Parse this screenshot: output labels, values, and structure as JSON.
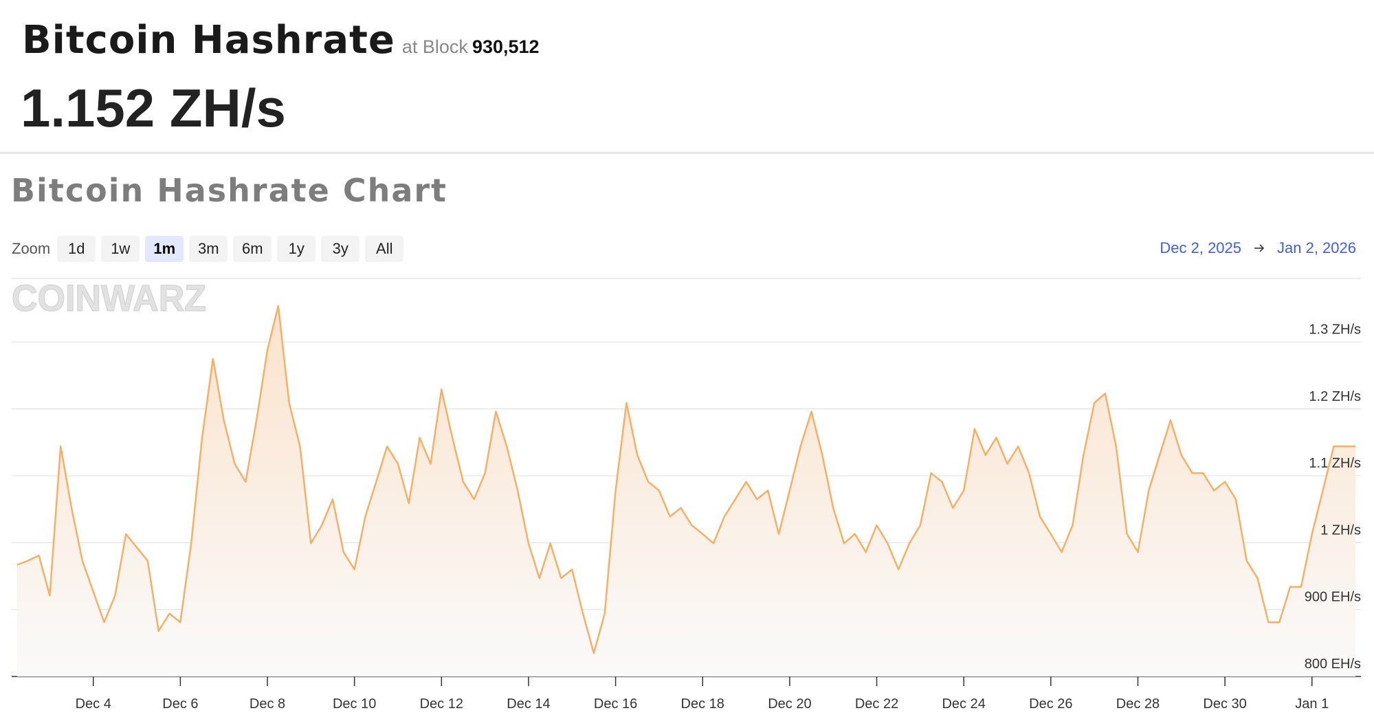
{
  "header": {
    "title": "Bitcoin Hashrate",
    "block_label": "at Block",
    "block_number": "930,512",
    "hashrate": "1.152 ZH/s"
  },
  "zoom": {
    "label": "Zoom",
    "options": [
      "1d",
      "1w",
      "1m",
      "3m",
      "6m",
      "1y",
      "3y",
      "All"
    ],
    "active": "1m"
  },
  "range": {
    "start": "Dec 2, 2025",
    "end": "Jan 2, 2026"
  },
  "watermark": "COINWARZ",
  "chart_data": {
    "type": "area",
    "title": "Bitcoin Hashrate Chart",
    "x": [
      "2025-12-02T06:00",
      "2025-12-02T12:00",
      "2025-12-02T18:00",
      "2025-12-03T00:00",
      "2025-12-03T06:00",
      "2025-12-03T12:00",
      "2025-12-03T18:00",
      "2025-12-04T00:00",
      "2025-12-04T06:00",
      "2025-12-04T12:00",
      "2025-12-04T18:00",
      "2025-12-05T00:00",
      "2025-12-05T06:00",
      "2025-12-05T12:00",
      "2025-12-05T18:00",
      "2025-12-06T00:00",
      "2025-12-06T06:00",
      "2025-12-06T12:00",
      "2025-12-06T18:00",
      "2025-12-07T00:00",
      "2025-12-07T06:00",
      "2025-12-07T12:00",
      "2025-12-07T18:00",
      "2025-12-08T00:00",
      "2025-12-08T06:00",
      "2025-12-08T12:00",
      "2025-12-08T18:00",
      "2025-12-09T00:00",
      "2025-12-09T06:00",
      "2025-12-09T12:00",
      "2025-12-09T18:00",
      "2025-12-10T00:00",
      "2025-12-10T06:00",
      "2025-12-10T12:00",
      "2025-12-10T18:00",
      "2025-12-11T00:00",
      "2025-12-11T06:00",
      "2025-12-11T12:00",
      "2025-12-11T18:00",
      "2025-12-12T00:00",
      "2025-12-12T06:00",
      "2025-12-12T12:00",
      "2025-12-12T18:00",
      "2025-12-13T00:00",
      "2025-12-13T06:00",
      "2025-12-13T12:00",
      "2025-12-13T18:00",
      "2025-12-14T00:00",
      "2025-12-14T06:00",
      "2025-12-14T12:00",
      "2025-12-14T18:00",
      "2025-12-15T00:00",
      "2025-12-15T06:00",
      "2025-12-15T12:00",
      "2025-12-15T18:00",
      "2025-12-16T00:00",
      "2025-12-16T06:00",
      "2025-12-16T12:00",
      "2025-12-16T18:00",
      "2025-12-17T00:00",
      "2025-12-17T06:00",
      "2025-12-17T12:00",
      "2025-12-17T18:00",
      "2025-12-18T00:00",
      "2025-12-18T06:00",
      "2025-12-18T12:00",
      "2025-12-18T18:00",
      "2025-12-19T00:00",
      "2025-12-19T06:00",
      "2025-12-19T12:00",
      "2025-12-19T18:00",
      "2025-12-20T00:00",
      "2025-12-20T06:00",
      "2025-12-20T12:00",
      "2025-12-20T18:00",
      "2025-12-21T00:00",
      "2025-12-21T06:00",
      "2025-12-21T12:00",
      "2025-12-21T18:00",
      "2025-12-22T00:00",
      "2025-12-22T06:00",
      "2025-12-22T12:00",
      "2025-12-22T18:00",
      "2025-12-23T00:00",
      "2025-12-23T06:00",
      "2025-12-23T12:00",
      "2025-12-23T18:00",
      "2025-12-24T00:00",
      "2025-12-24T06:00",
      "2025-12-24T12:00",
      "2025-12-24T18:00",
      "2025-12-25T00:00",
      "2025-12-25T06:00",
      "2025-12-25T12:00",
      "2025-12-25T18:00",
      "2025-12-26T00:00",
      "2025-12-26T06:00",
      "2025-12-26T12:00",
      "2025-12-26T18:00",
      "2025-12-27T00:00",
      "2025-12-27T06:00",
      "2025-12-27T12:00",
      "2025-12-27T18:00",
      "2025-12-28T00:00",
      "2025-12-28T06:00",
      "2025-12-28T12:00",
      "2025-12-28T18:00",
      "2025-12-29T00:00",
      "2025-12-29T06:00",
      "2025-12-29T12:00",
      "2025-12-29T18:00",
      "2025-12-30T00:00",
      "2025-12-30T06:00",
      "2025-12-30T12:00",
      "2025-12-30T18:00",
      "2025-12-31T00:00",
      "2025-12-31T06:00",
      "2025-12-31T12:00",
      "2025-12-31T18:00",
      "2026-01-01T00:00",
      "2026-01-01T06:00",
      "2026-01-01T12:00",
      "2026-01-01T18:00",
      "2026-01-02T00:00"
    ],
    "series": [
      {
        "name": "Hashrate",
        "color": "#f6b065",
        "values": [
          967,
          973,
          981,
          921,
          1144,
          1052,
          973,
          927,
          881,
          921,
          1013,
          993,
          973,
          868,
          894,
          881,
          999,
          1157,
          1275,
          1183,
          1118,
          1091,
          1183,
          1288,
          1354,
          1209,
          1144,
          999,
          1026,
          1065,
          986,
          960,
          1039,
          1091,
          1144,
          1118,
          1059,
          1157,
          1118,
          1229,
          1157,
          1091,
          1065,
          1104,
          1196,
          1144,
          1078,
          999,
          947,
          999,
          947,
          960,
          894,
          835,
          894,
          1078,
          1209,
          1131,
          1091,
          1078,
          1039,
          1052,
          1026,
          1013,
          999,
          1039,
          1065,
          1091,
          1065,
          1078,
          1013,
          1078,
          1144,
          1196,
          1131,
          1052,
          999,
          1013,
          986,
          1026,
          999,
          960,
          999,
          1026,
          1104,
          1091,
          1052,
          1078,
          1170,
          1131,
          1157,
          1118,
          1144,
          1104,
          1039,
          1013,
          986,
          1026,
          1131,
          1209,
          1223,
          1144,
          1013,
          986,
          1078,
          1131,
          1183,
          1131,
          1104,
          1104,
          1078,
          1091,
          1065,
          973,
          947,
          881,
          881,
          934,
          934,
          1013,
          1078,
          1144,
          1144,
          1144
        ]
      }
    ],
    "xlim": [
      "2025-12-02T03:00",
      "2026-01-02T03:00"
    ],
    "xticks": [
      {
        "value": "2025-12-04T00:00",
        "label": "Dec 4"
      },
      {
        "value": "2025-12-06T00:00",
        "label": "Dec 6"
      },
      {
        "value": "2025-12-08T00:00",
        "label": "Dec 8"
      },
      {
        "value": "2025-12-10T00:00",
        "label": "Dec 10"
      },
      {
        "value": "2025-12-12T00:00",
        "label": "Dec 12"
      },
      {
        "value": "2025-12-14T00:00",
        "label": "Dec 14"
      },
      {
        "value": "2025-12-16T00:00",
        "label": "Dec 16"
      },
      {
        "value": "2025-12-18T00:00",
        "label": "Dec 18"
      },
      {
        "value": "2025-12-20T00:00",
        "label": "Dec 20"
      },
      {
        "value": "2025-12-22T00:00",
        "label": "Dec 22"
      },
      {
        "value": "2025-12-24T00:00",
        "label": "Dec 24"
      },
      {
        "value": "2025-12-26T00:00",
        "label": "Dec 26"
      },
      {
        "value": "2025-12-28T00:00",
        "label": "Dec 28"
      },
      {
        "value": "2025-12-30T00:00",
        "label": "Dec 30"
      },
      {
        "value": "2026-01-01T00:00",
        "label": "Jan 1"
      }
    ],
    "ylim": [
      800,
      1395
    ],
    "yticks": [
      {
        "value": 800,
        "label": "800 EH/s"
      },
      {
        "value": 900,
        "label": "900 EH/s"
      },
      {
        "value": 1000,
        "label": "1 ZH/s"
      },
      {
        "value": 1100,
        "label": "1.1 ZH/s"
      },
      {
        "value": 1200,
        "label": "1.2 ZH/s"
      },
      {
        "value": 1300,
        "label": "1.3 ZH/s"
      }
    ],
    "grid": true
  }
}
